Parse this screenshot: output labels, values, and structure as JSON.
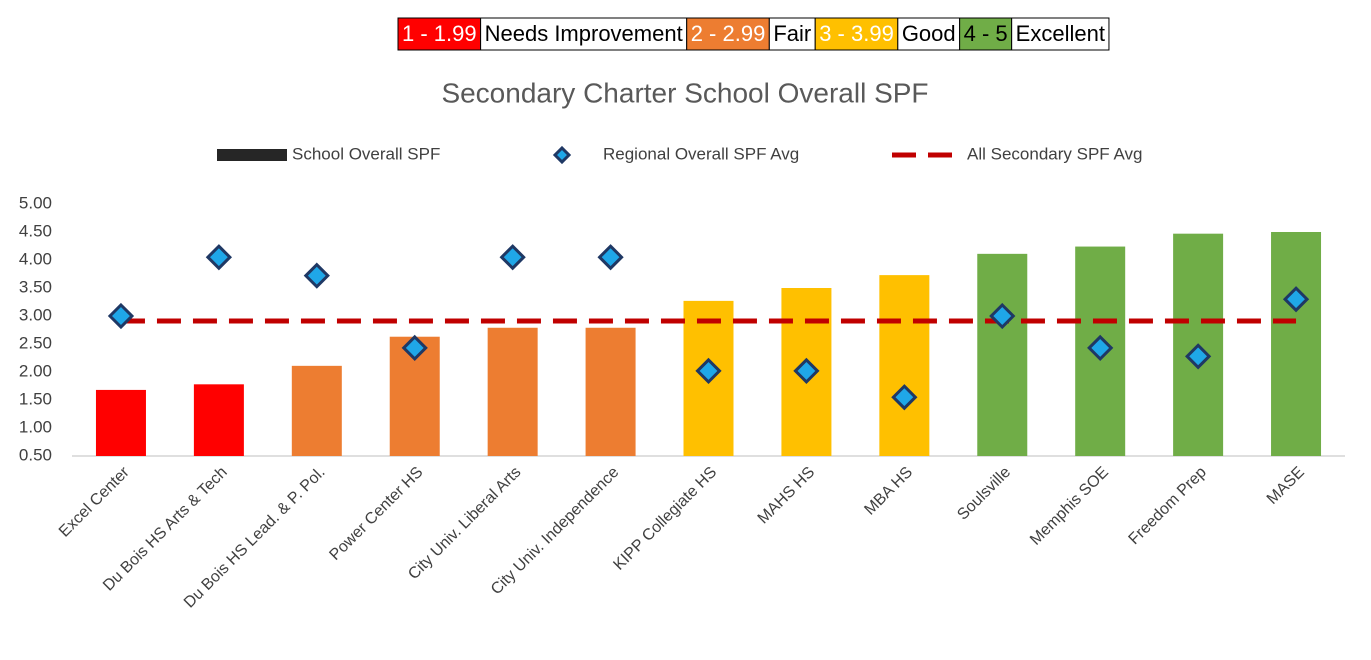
{
  "chart_data": {
    "type": "bar",
    "title": "Secondary Charter School Overall SPF",
    "key": [
      {
        "range": "1 - 1.99",
        "label": "Needs Improvement",
        "color": "#ff0000"
      },
      {
        "range": "2 - 2.99",
        "label": "Fair",
        "color": "#ed7d31"
      },
      {
        "range": "3 - 3.99",
        "label": "Good",
        "color": "#ffc000"
      },
      {
        "range": "4 - 5",
        "label": "Excellent",
        "color": "#70ad47"
      }
    ],
    "categories": [
      "Excel Center",
      "Du Bois HS Arts & Tech",
      "Du Bois HS Lead. & P. Pol.",
      "Power Center HS",
      "City Univ. Liberal Arts",
      "City Univ. Independence",
      "KIPP Collegiate HS",
      "MAHS HS",
      "MBA HS",
      "Soulsville",
      "Memphis SOE",
      "Freedom Prep",
      "MASE"
    ],
    "series": [
      {
        "name": "School Overall SPF",
        "type": "bar",
        "color": "#262626",
        "colors": [
          "#ff0000",
          "#ff0000",
          "#ed7d31",
          "#ed7d31",
          "#ed7d31",
          "#ed7d31",
          "#ffc000",
          "#ffc000",
          "#ffc000",
          "#70ad47",
          "#70ad47",
          "#70ad47",
          "#70ad47"
        ],
        "values": [
          1.68,
          1.78,
          2.11,
          2.63,
          2.79,
          2.79,
          3.27,
          3.5,
          3.73,
          4.11,
          4.24,
          4.47,
          4.5
        ]
      },
      {
        "name": "Regional Overall SPF Avg",
        "type": "scatter",
        "color": "#1fa7e8",
        "edge_color": "#1f3864",
        "values": [
          3.0,
          4.05,
          3.72,
          2.43,
          4.05,
          4.05,
          2.02,
          2.02,
          1.55,
          3.0,
          2.43,
          2.28,
          3.3
        ]
      },
      {
        "name": "All Secondary SPF Avg",
        "type": "hline",
        "color": "#c00000",
        "value": 2.91
      }
    ],
    "ylim": [
      0.5,
      5
    ],
    "yticks": [
      {
        "value": 0.5,
        "label": "0.50"
      },
      {
        "value": 1,
        "label": "1.00"
      },
      {
        "value": 1.5,
        "label": "1.50"
      },
      {
        "value": 2,
        "label": "2.00"
      },
      {
        "value": 2.5,
        "label": "2.50"
      },
      {
        "value": 3,
        "label": "3.00"
      },
      {
        "value": 3.5,
        "label": "3.50"
      },
      {
        "value": 4,
        "label": "4.00"
      },
      {
        "value": 4.5,
        "label": "4.50"
      },
      {
        "value": 5,
        "label": "5.00"
      }
    ],
    "grid": false
  }
}
